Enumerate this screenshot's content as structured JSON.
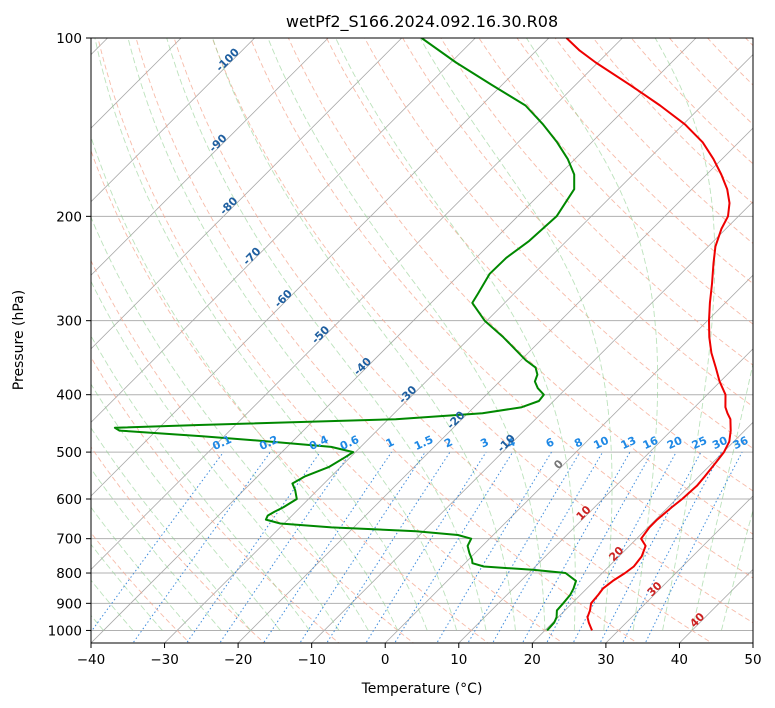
{
  "chart_data": {
    "type": "line",
    "subtype": "skew-T log-P diagram",
    "title": "wetPf2_S166.2024.092.16.30.R08",
    "xlabel": "Temperature (°C)",
    "ylabel": "Pressure (hPa)",
    "xlim": [
      -40,
      50
    ],
    "ylim": [
      1050,
      100
    ],
    "y_scale": "log",
    "grid": true,
    "x_ticks": [
      "−40",
      "−30",
      "−20",
      "−10",
      "0",
      "10",
      "20",
      "30",
      "40",
      "50"
    ],
    "y_ticks": [
      "100",
      "200",
      "300",
      "400",
      "500",
      "600",
      "700",
      "800",
      "900",
      "1000"
    ],
    "series": [
      {
        "color": "#ee0000",
        "pressure": [
          1000,
          970,
          950,
          925,
          900,
          870,
          850,
          825,
          800,
          780,
          750,
          720,
          700,
          670,
          650,
          620,
          600,
          570,
          550,
          520,
          500,
          480,
          460,
          440,
          430,
          420,
          400,
          380,
          360,
          340,
          320,
          300,
          280,
          260,
          240,
          225,
          210,
          200,
          190,
          180,
          170,
          160,
          150,
          140,
          130,
          120,
          110,
          105,
          100
        ],
        "temperature": [
          26.4,
          24.9,
          24.0,
          23.4,
          22.6,
          22.4,
          22.2,
          22.5,
          23.1,
          23.4,
          23.1,
          22.2,
          20.6,
          20.2,
          20.2,
          20.5,
          20.8,
          21.0,
          20.8,
          20.4,
          20.1,
          19.4,
          18.1,
          16.5,
          15.3,
          14.2,
          12.5,
          9.9,
          7.5,
          4.9,
          2.5,
          0.2,
          -2.1,
          -4.4,
          -7.0,
          -9.0,
          -10.6,
          -11.4,
          -13.0,
          -15.2,
          -18.0,
          -21.2,
          -24.9,
          -29.7,
          -35.7,
          -42.6,
          -50.3,
          -54.1,
          -57.6
        ]
      },
      {
        "color": "#008800",
        "pressure": [
          1000,
          970,
          950,
          925,
          900,
          870,
          850,
          825,
          800,
          790,
          780,
          770,
          760,
          740,
          720,
          700,
          690,
          680,
          670,
          660,
          650,
          640,
          630,
          620,
          600,
          580,
          565,
          550,
          530,
          510,
          500,
          490,
          480,
          470,
          460,
          455,
          450,
          440,
          430,
          420,
          410,
          400,
          390,
          380,
          370,
          360,
          350,
          340,
          320,
          300,
          280,
          270,
          250,
          235,
          220,
          200,
          180,
          170,
          160,
          150,
          140,
          130,
          120,
          110,
          100
        ],
        "dewpoint": [
          20.3,
          20.2,
          19.8,
          18.9,
          18.8,
          18.6,
          18.2,
          17.5,
          15.0,
          10.1,
          3.0,
          1.0,
          0.5,
          -0.8,
          -2.0,
          -2.5,
          -4.8,
          -11.0,
          -23.0,
          -30.5,
          -33.0,
          -33.3,
          -32.9,
          -32.3,
          -31.6,
          -33.0,
          -34.3,
          -33.6,
          -31.6,
          -30.7,
          -30.3,
          -34.0,
          -43.0,
          -53.0,
          -65.0,
          -66.0,
          -55.0,
          -29.0,
          -18.0,
          -13.5,
          -12.0,
          -12.2,
          -13.9,
          -15.2,
          -15.8,
          -17.0,
          -19.3,
          -21.3,
          -25.5,
          -30.3,
          -34.4,
          -34.9,
          -36.0,
          -35.9,
          -35.1,
          -34.7,
          -36.0,
          -38.0,
          -41.0,
          -44.7,
          -49.0,
          -54.0,
          -61.4,
          -69.3,
          -77.3
        ]
      }
    ],
    "reference_lines": {
      "dry_adiabat_labels": [
        -100,
        -90,
        -80,
        -70,
        -60,
        -50,
        -40,
        -30,
        -20,
        -10,
        0,
        10,
        20,
        30,
        40
      ],
      "mixing_ratio_labels": [
        "0.1",
        "0.2",
        "0.4",
        "0.6",
        "1",
        "1.5",
        "2",
        "3",
        "4",
        "6",
        "8",
        "10",
        "13",
        "16",
        "20",
        "25",
        "30",
        "36"
      ]
    }
  }
}
